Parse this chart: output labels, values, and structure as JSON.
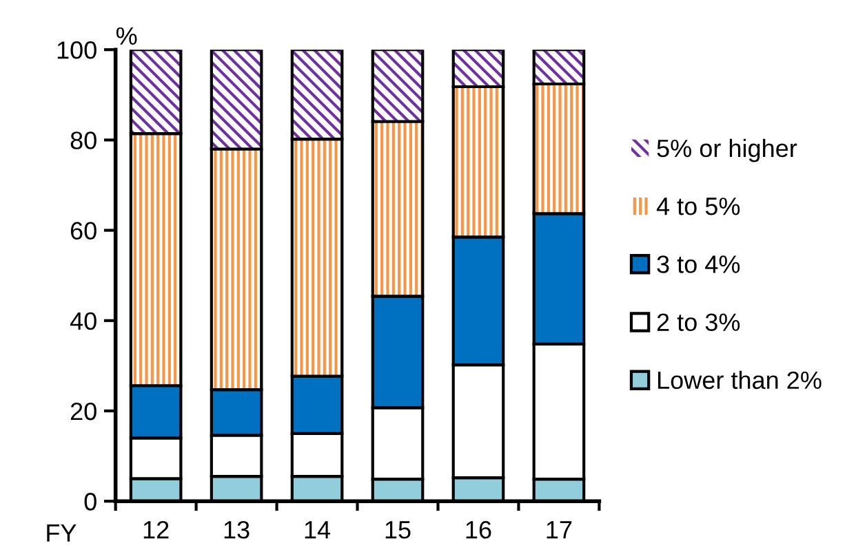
{
  "chart_data": {
    "type": "bar",
    "stacked": true,
    "ylabel": "%",
    "xlabel": "FY",
    "categories": [
      "12",
      "13",
      "14",
      "15",
      "16",
      "17"
    ],
    "series": [
      {
        "name": "Lower than 2%",
        "color": "#92cddc",
        "values": [
          5,
          5.5,
          5.5,
          4.9,
          5.2,
          4.9
        ]
      },
      {
        "name": "2 to 3%",
        "color": "#ffffff",
        "values": [
          9,
          9.1,
          9.5,
          15.8,
          25,
          29.9
        ]
      },
      {
        "name": "3 to 4%",
        "color": "#0070c0",
        "values": [
          11.6,
          10.1,
          12.7,
          24.7,
          28.3,
          28.9
        ]
      },
      {
        "name": "4 to 5%",
        "color": "#f79646",
        "values": [
          55.8,
          53.3,
          52.5,
          38.7,
          33.3,
          28.7
        ]
      },
      {
        "name": "5% or higher",
        "color": "#7030a0",
        "values": [
          18.6,
          22,
          19.8,
          15.9,
          8.2,
          7.6
        ]
      }
    ],
    "ylim": [
      0,
      100
    ],
    "yticks": [
      0,
      20,
      40,
      60,
      80,
      100
    ],
    "grid": false,
    "legend": "right"
  }
}
